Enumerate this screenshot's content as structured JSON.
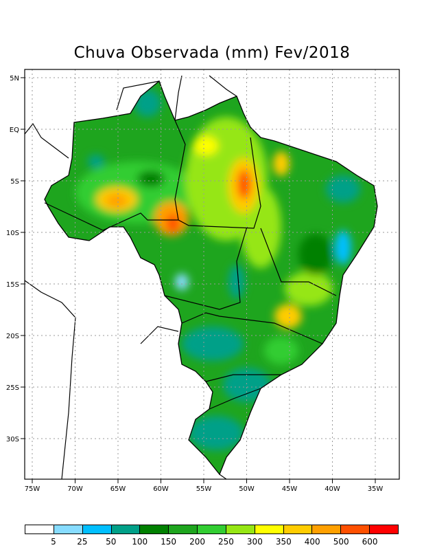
{
  "title": "Chuva Observada (mm) Fev/2018",
  "lat_labels": [
    {
      "text": "5N",
      "lat": 5
    },
    {
      "text": "EQ",
      "lat": 0
    },
    {
      "text": "5S",
      "lat": -5
    },
    {
      "text": "10S",
      "lat": -10
    },
    {
      "text": "15S",
      "lat": -15
    },
    {
      "text": "20S",
      "lat": -20
    },
    {
      "text": "25S",
      "lat": -25
    },
    {
      "text": "30S",
      "lat": -30
    }
  ],
  "lon_labels": [
    {
      "text": "75W",
      "lon": -75
    },
    {
      "text": "70W",
      "lon": -70
    },
    {
      "text": "65W",
      "lon": -65
    },
    {
      "text": "60W",
      "lon": -60
    },
    {
      "text": "55W",
      "lon": -55
    },
    {
      "text": "50W",
      "lon": -50
    },
    {
      "text": "45W",
      "lon": -45
    },
    {
      "text": "40W",
      "lon": -40
    },
    {
      "text": "35W",
      "lon": -35
    }
  ],
  "colorbar": {
    "colors": [
      "#ffffff",
      "#87dcff",
      "#00bfff",
      "#00a088",
      "#008000",
      "#1ea51e",
      "#32cd32",
      "#96e614",
      "#ffff00",
      "#ffcc00",
      "#ffa000",
      "#ff5000",
      "#ff0000"
    ],
    "labels": [
      "5",
      "25",
      "50",
      "100",
      "150",
      "200",
      "250",
      "300",
      "350",
      "400",
      "500",
      "600"
    ]
  }
}
